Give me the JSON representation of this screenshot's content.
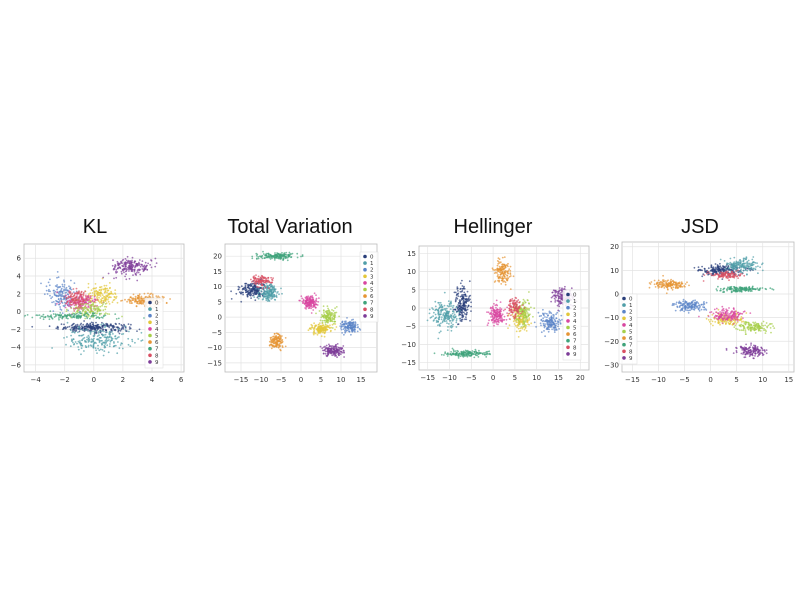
{
  "chart_data": [
    {
      "type": "scatter",
      "title": "KL",
      "xlim": [
        -4.8,
        6.2
      ],
      "ylim": [
        -6.8,
        7.6
      ],
      "xticks": [
        -4,
        -2,
        0,
        2,
        4,
        6
      ],
      "yticks": [
        -6,
        -4,
        -2,
        0,
        2,
        4,
        6
      ],
      "xtick_labels": [
        "−4",
        "−2",
        "0",
        "2",
        "4",
        "6"
      ],
      "ytick_labels": [
        "−6",
        "−4",
        "−2",
        "0",
        "2",
        "4",
        "6"
      ],
      "grid": true,
      "legend": {
        "position": "right",
        "labels": [
          "0",
          "1",
          "2",
          "3",
          "4",
          "5",
          "6",
          "7",
          "8",
          "9"
        ]
      },
      "series": [
        {
          "name": "0",
          "color": "#2a3f7a",
          "cx": 0.0,
          "cy": -1.8,
          "sx": 2.2,
          "sy": 0.45,
          "n": 260
        },
        {
          "name": "1",
          "color": "#4f9ea8",
          "cx": 0.3,
          "cy": -3.2,
          "sx": 2.0,
          "sy": 1.3,
          "n": 220
        },
        {
          "name": "2",
          "color": "#5b84c8",
          "cx": -2.2,
          "cy": 2.0,
          "sx": 0.9,
          "sy": 1.6,
          "n": 150
        },
        {
          "name": "3",
          "color": "#e3c73a",
          "cx": 0.6,
          "cy": 1.8,
          "sx": 1.0,
          "sy": 1.1,
          "n": 150
        },
        {
          "name": "4",
          "color": "#d845a0",
          "cx": -0.8,
          "cy": 1.0,
          "sx": 1.0,
          "sy": 0.8,
          "n": 150
        },
        {
          "name": "5",
          "color": "#a7cf4a",
          "cx": -0.3,
          "cy": 0.2,
          "sx": 1.2,
          "sy": 0.8,
          "n": 130
        },
        {
          "name": "6",
          "color": "#e69433",
          "cx": 3.5,
          "cy": 1.3,
          "sx": 1.3,
          "sy": 0.6,
          "n": 170
        },
        {
          "name": "7",
          "color": "#3fa37a",
          "cx": -1.5,
          "cy": -0.5,
          "sx": 2.5,
          "sy": 0.3,
          "n": 140
        },
        {
          "name": "8",
          "color": "#d94f63",
          "cx": -1.2,
          "cy": 1.5,
          "sx": 0.7,
          "sy": 0.8,
          "n": 110
        },
        {
          "name": "9",
          "color": "#7d3c98",
          "cx": 2.6,
          "cy": 5.0,
          "sx": 1.2,
          "sy": 0.9,
          "n": 200
        }
      ]
    },
    {
      "type": "scatter",
      "title": "Total Variation",
      "xlim": [
        -19,
        19
      ],
      "ylim": [
        -18,
        24
      ],
      "xticks": [
        -15,
        -10,
        -5,
        0,
        5,
        10,
        15
      ],
      "yticks": [
        -15,
        -10,
        -5,
        0,
        5,
        10,
        15,
        20
      ],
      "xtick_labels": [
        "−15",
        "−10",
        "−5",
        "0",
        "5",
        "10",
        "15"
      ],
      "ytick_labels": [
        "−15",
        "−10",
        "−5",
        "0",
        "5",
        "10",
        "15",
        "20"
      ],
      "grid": true,
      "legend": {
        "position": "top-right",
        "labels": [
          "0",
          "1",
          "2",
          "3",
          "4",
          "5",
          "6",
          "7",
          "8",
          "9"
        ]
      },
      "series": [
        {
          "name": "0",
          "color": "#2a3f7a",
          "cx": -12,
          "cy": 9,
          "sx": 3.0,
          "sy": 2.4,
          "n": 200
        },
        {
          "name": "1",
          "color": "#4f9ea8",
          "cx": -8,
          "cy": 8,
          "sx": 2.2,
          "sy": 2.6,
          "n": 170
        },
        {
          "name": "2",
          "color": "#5b84c8",
          "cx": 12,
          "cy": -3,
          "sx": 2.0,
          "sy": 1.6,
          "n": 150
        },
        {
          "name": "3",
          "color": "#e3c73a",
          "cx": 5,
          "cy": -4,
          "sx": 2.4,
          "sy": 1.5,
          "n": 150
        },
        {
          "name": "4",
          "color": "#d845a0",
          "cx": 2,
          "cy": 5,
          "sx": 1.8,
          "sy": 1.8,
          "n": 150
        },
        {
          "name": "5",
          "color": "#a7cf4a",
          "cx": 7,
          "cy": 0,
          "sx": 1.8,
          "sy": 2.4,
          "n": 140
        },
        {
          "name": "6",
          "color": "#e69433",
          "cx": -6,
          "cy": -8,
          "sx": 1.7,
          "sy": 2.3,
          "n": 140
        },
        {
          "name": "7",
          "color": "#3fa37a",
          "cx": -6,
          "cy": 20,
          "sx": 4.2,
          "sy": 1.0,
          "n": 170
        },
        {
          "name": "8",
          "color": "#d94f63",
          "cx": -10,
          "cy": 12,
          "sx": 2.5,
          "sy": 1.5,
          "n": 110
        },
        {
          "name": "9",
          "color": "#7d3c98",
          "cx": 8,
          "cy": -11,
          "sx": 2.2,
          "sy": 1.6,
          "n": 170
        }
      ]
    },
    {
      "type": "scatter",
      "title": "Hellinger",
      "xlim": [
        -17,
        22
      ],
      "ylim": [
        -17,
        17
      ],
      "xticks": [
        -15,
        -10,
        -5,
        0,
        5,
        10,
        15,
        20
      ],
      "yticks": [
        -15,
        -10,
        -5,
        0,
        5,
        10,
        15
      ],
      "xtick_labels": [
        "−15",
        "−10",
        "−5",
        "0",
        "5",
        "10",
        "15",
        "20"
      ],
      "ytick_labels": [
        "−15",
        "−10",
        "−5",
        "0",
        "5",
        "10",
        "15"
      ],
      "grid": true,
      "legend": {
        "position": "right",
        "labels": [
          "0",
          "1",
          "2",
          "3",
          "4",
          "5",
          "6",
          "7",
          "8",
          "9"
        ]
      },
      "series": [
        {
          "name": "0",
          "color": "#2a3f7a",
          "cx": -7,
          "cy": 1,
          "sx": 1.6,
          "sy": 4.5,
          "n": 200
        },
        {
          "name": "1",
          "color": "#4f9ea8",
          "cx": -11,
          "cy": -2,
          "sx": 2.8,
          "sy": 3.5,
          "n": 190
        },
        {
          "name": "2",
          "color": "#5b84c8",
          "cx": 13,
          "cy": -4,
          "sx": 2.2,
          "sy": 2.5,
          "n": 160
        },
        {
          "name": "3",
          "color": "#e3c73a",
          "cx": 6,
          "cy": -3,
          "sx": 2.0,
          "sy": 2.6,
          "n": 140
        },
        {
          "name": "4",
          "color": "#d845a0",
          "cx": 1,
          "cy": -2,
          "sx": 1.8,
          "sy": 2.8,
          "n": 150
        },
        {
          "name": "5",
          "color": "#a7cf4a",
          "cx": 7,
          "cy": -1,
          "sx": 1.6,
          "sy": 3.0,
          "n": 130
        },
        {
          "name": "6",
          "color": "#e69433",
          "cx": 2,
          "cy": 10,
          "sx": 1.7,
          "sy": 2.8,
          "n": 150
        },
        {
          "name": "7",
          "color": "#3fa37a",
          "cx": -6,
          "cy": -12.5,
          "sx": 4.5,
          "sy": 0.8,
          "n": 170
        },
        {
          "name": "8",
          "color": "#d94f63",
          "cx": 5,
          "cy": 0,
          "sx": 1.5,
          "sy": 2.5,
          "n": 110
        },
        {
          "name": "9",
          "color": "#7d3c98",
          "cx": 16,
          "cy": 3,
          "sx": 2.0,
          "sy": 2.4,
          "n": 160
        }
      ]
    },
    {
      "type": "scatter",
      "title": "JSD",
      "xlim": [
        -17,
        16
      ],
      "ylim": [
        -33,
        22
      ],
      "xticks": [
        -15,
        -10,
        -5,
        0,
        5,
        10,
        15
      ],
      "yticks": [
        -30,
        -20,
        -10,
        0,
        10,
        20
      ],
      "xtick_labels": [
        "−15",
        "−10",
        "−5",
        "0",
        "5",
        "10",
        "15"
      ],
      "ytick_labels": [
        "−30",
        "−20",
        "−10",
        "0",
        "10",
        "20"
      ],
      "grid": true,
      "legend": {
        "position": "left",
        "labels": [
          "0",
          "1",
          "2",
          "3",
          "4",
          "5",
          "6",
          "7",
          "8",
          "9"
        ]
      },
      "series": [
        {
          "name": "0",
          "color": "#2a3f7a",
          "cx": 2,
          "cy": 10,
          "sx": 4.0,
          "sy": 2.0,
          "n": 200
        },
        {
          "name": "1",
          "color": "#4f9ea8",
          "cx": 6,
          "cy": 12,
          "sx": 3.0,
          "sy": 3.0,
          "n": 170
        },
        {
          "name": "2",
          "color": "#5b84c8",
          "cx": -4,
          "cy": -5,
          "sx": 2.5,
          "sy": 2.0,
          "n": 150
        },
        {
          "name": "3",
          "color": "#e3c73a",
          "cx": 3,
          "cy": -11,
          "sx": 3.0,
          "sy": 2.5,
          "n": 130
        },
        {
          "name": "4",
          "color": "#d845a0",
          "cx": 3,
          "cy": -9,
          "sx": 3.0,
          "sy": 2.5,
          "n": 150
        },
        {
          "name": "5",
          "color": "#a7cf4a",
          "cx": 8,
          "cy": -14,
          "sx": 3.0,
          "sy": 2.0,
          "n": 140
        },
        {
          "name": "6",
          "color": "#e69433",
          "cx": -8,
          "cy": 4,
          "sx": 3.0,
          "sy": 1.8,
          "n": 150
        },
        {
          "name": "7",
          "color": "#3fa37a",
          "cx": 6,
          "cy": 2,
          "sx": 4.0,
          "sy": 1.0,
          "n": 150
        },
        {
          "name": "8",
          "color": "#d94f63",
          "cx": 3,
          "cy": 8,
          "sx": 3.0,
          "sy": 1.5,
          "n": 110
        },
        {
          "name": "9",
          "color": "#7d3c98",
          "cx": 8,
          "cy": -24,
          "sx": 2.5,
          "sy": 2.2,
          "n": 160
        }
      ]
    }
  ]
}
